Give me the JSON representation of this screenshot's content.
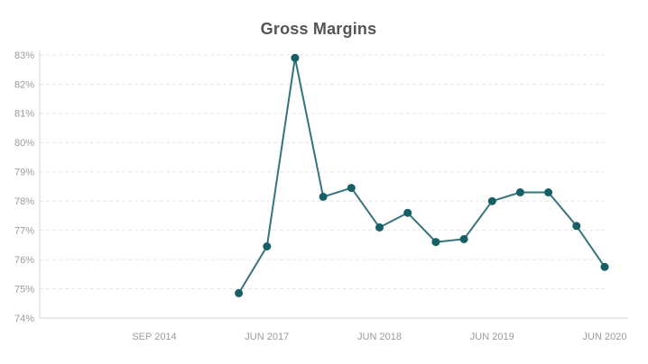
{
  "chart_data": {
    "type": "line",
    "title": "Gross Margins",
    "legend": "none",
    "grid": "horizontal-dashed",
    "ylim": [
      74,
      83
    ],
    "y_tick_step": 1,
    "y_tick_format": "{v}%",
    "y_tick_labels": [
      "74%",
      "75%",
      "76%",
      "77%",
      "78%",
      "79%",
      "80%",
      "81%",
      "82%",
      "83%"
    ],
    "x_tick_labels": [
      "SEP 2014",
      "JUN 2017",
      "JUN 2018",
      "JUN 2019",
      "JUN 2020"
    ],
    "x_start_tick_units": 0.75,
    "x_step_tick_units": 0.25,
    "series": [
      {
        "name": "Gross Margins",
        "x_labels_inferred": [
          "MAR 2017",
          "JUN 2017",
          "SEP 2017",
          "DEC 2017",
          "MAR 2018",
          "JUN 2018",
          "SEP 2018",
          "DEC 2018",
          "MAR 2019",
          "JUN 2019",
          "SEP 2019",
          "DEC 2019",
          "MAR 2020",
          "JUN 2020"
        ],
        "values": [
          74.85,
          76.45,
          82.9,
          78.15,
          78.45,
          77.1,
          77.6,
          76.6,
          76.7,
          78.0,
          78.3,
          78.3,
          77.15,
          75.75
        ]
      }
    ],
    "colors": {
      "line": "#35747a",
      "marker": "#155f66",
      "grid": "#e6e6e6",
      "axis": "#d6d6d6",
      "tick_label": "#9b9b9b",
      "title": "#555555"
    }
  }
}
